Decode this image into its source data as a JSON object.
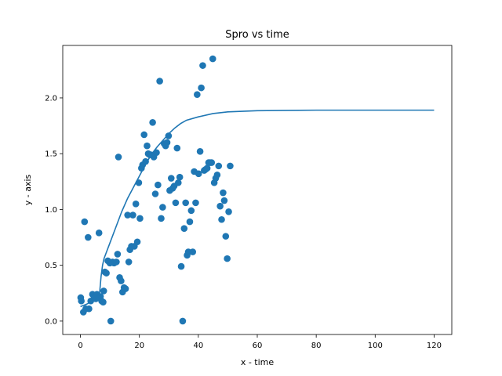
{
  "chart_data": {
    "type": "scatter",
    "title": "Spro vs time",
    "xlabel": "x - time",
    "ylabel": "y - axis",
    "xlim": [
      -6,
      126
    ],
    "ylim": [
      -0.12,
      2.47
    ],
    "xticks": [
      0,
      20,
      40,
      60,
      80,
      100,
      120
    ],
    "yticks": [
      0.0,
      0.5,
      1.0,
      1.5,
      2.0
    ],
    "xtick_labels": [
      "0",
      "20",
      "40",
      "60",
      "80",
      "100",
      "120"
    ],
    "ytick_labels": [
      "0.0",
      "0.5",
      "1.0",
      "1.5",
      "2.0"
    ],
    "grid": false,
    "legend": false,
    "colors": {
      "series": "#1f77b4"
    },
    "series": [
      {
        "kind": "scatter",
        "points": [
          [
            0.1,
            0.21
          ],
          [
            0.3,
            0.18
          ],
          [
            1.0,
            0.08
          ],
          [
            1.4,
            0.89
          ],
          [
            1.8,
            0.11
          ],
          [
            2.6,
            0.75
          ],
          [
            2.9,
            0.11
          ],
          [
            3.5,
            0.18
          ],
          [
            4.1,
            0.24
          ],
          [
            4.6,
            0.22
          ],
          [
            5.2,
            0.2
          ],
          [
            5.6,
            0.24
          ],
          [
            6.3,
            0.79
          ],
          [
            6.8,
            0.22
          ],
          [
            7.2,
            0.18
          ],
          [
            7.7,
            0.17
          ],
          [
            7.9,
            0.27
          ],
          [
            8.3,
            0.44
          ],
          [
            8.8,
            0.43
          ],
          [
            9.3,
            0.54
          ],
          [
            10.0,
            0.52
          ],
          [
            10.3,
            0.0
          ],
          [
            10.9,
            0.53
          ],
          [
            11.4,
            0.52
          ],
          [
            12.2,
            0.53
          ],
          [
            12.6,
            0.6
          ],
          [
            12.9,
            1.47
          ],
          [
            13.3,
            0.39
          ],
          [
            13.8,
            0.36
          ],
          [
            14.3,
            0.26
          ],
          [
            14.8,
            0.3
          ],
          [
            15.3,
            0.29
          ],
          [
            16.0,
            0.95
          ],
          [
            16.4,
            0.53
          ],
          [
            16.8,
            0.64
          ],
          [
            17.3,
            0.67
          ],
          [
            17.8,
            0.95
          ],
          [
            18.3,
            0.67
          ],
          [
            18.8,
            1.05
          ],
          [
            19.3,
            0.71
          ],
          [
            19.8,
            1.24
          ],
          [
            20.2,
            0.92
          ],
          [
            20.7,
            1.37
          ],
          [
            21.1,
            1.4
          ],
          [
            21.6,
            1.67
          ],
          [
            22.1,
            1.43
          ],
          [
            22.6,
            1.57
          ],
          [
            23.0,
            1.5
          ],
          [
            23.5,
            1.49
          ],
          [
            24.0,
            1.49
          ],
          [
            24.5,
            1.78
          ],
          [
            24.9,
            1.47
          ],
          [
            25.4,
            1.14
          ],
          [
            25.8,
            1.51
          ],
          [
            26.3,
            1.22
          ],
          [
            26.9,
            2.15
          ],
          [
            27.4,
            0.92
          ],
          [
            27.9,
            1.02
          ],
          [
            28.4,
            1.59
          ],
          [
            28.9,
            1.57
          ],
          [
            29.4,
            1.6
          ],
          [
            29.9,
            1.66
          ],
          [
            30.3,
            1.17
          ],
          [
            30.8,
            1.28
          ],
          [
            31.3,
            1.19
          ],
          [
            31.8,
            1.21
          ],
          [
            32.3,
            1.06
          ],
          [
            32.8,
            1.55
          ],
          [
            33.2,
            1.24
          ],
          [
            33.7,
            1.29
          ],
          [
            34.2,
            0.49
          ],
          [
            34.7,
            0.0
          ],
          [
            35.2,
            0.83
          ],
          [
            35.7,
            1.06
          ],
          [
            36.2,
            0.59
          ],
          [
            36.6,
            0.62
          ],
          [
            37.1,
            0.89
          ],
          [
            37.6,
            0.99
          ],
          [
            38.1,
            0.62
          ],
          [
            38.6,
            1.34
          ],
          [
            39.1,
            1.06
          ],
          [
            39.6,
            2.03
          ],
          [
            40.1,
            1.32
          ],
          [
            40.6,
            1.52
          ],
          [
            41.0,
            2.09
          ],
          [
            41.5,
            2.29
          ],
          [
            42.0,
            1.35
          ],
          [
            42.5,
            1.36
          ],
          [
            43.0,
            1.37
          ],
          [
            43.5,
            1.42
          ],
          [
            44.0,
            1.42
          ],
          [
            44.5,
            1.42
          ],
          [
            44.9,
            2.35
          ],
          [
            45.4,
            1.24
          ],
          [
            45.9,
            1.28
          ],
          [
            46.4,
            1.31
          ],
          [
            46.9,
            1.39
          ],
          [
            47.4,
            1.03
          ],
          [
            47.9,
            0.91
          ],
          [
            48.4,
            1.15
          ],
          [
            48.8,
            1.08
          ],
          [
            49.3,
            0.76
          ],
          [
            49.8,
            0.56
          ],
          [
            50.3,
            0.98
          ],
          [
            50.8,
            1.39
          ]
        ]
      },
      {
        "kind": "line",
        "points": [
          [
            0,
            0.13
          ],
          [
            2,
            0.15
          ],
          [
            4,
            0.18
          ],
          [
            6,
            0.22
          ],
          [
            6.5,
            0.25
          ],
          [
            7,
            0.4
          ],
          [
            7.5,
            0.5
          ],
          [
            8,
            0.56
          ],
          [
            9,
            0.63
          ],
          [
            10,
            0.7
          ],
          [
            12,
            0.84
          ],
          [
            14,
            0.98
          ],
          [
            16,
            1.1
          ],
          [
            18,
            1.2
          ],
          [
            20,
            1.3
          ],
          [
            22,
            1.4
          ],
          [
            24,
            1.49
          ],
          [
            26,
            1.56
          ],
          [
            28,
            1.62
          ],
          [
            30,
            1.68
          ],
          [
            32,
            1.73
          ],
          [
            34,
            1.77
          ],
          [
            36,
            1.8
          ],
          [
            40,
            1.83
          ],
          [
            45,
            1.86
          ],
          [
            50,
            1.875
          ],
          [
            60,
            1.885
          ],
          [
            70,
            1.888
          ],
          [
            80,
            1.89
          ],
          [
            90,
            1.89
          ],
          [
            100,
            1.89
          ],
          [
            110,
            1.89
          ],
          [
            120,
            1.89
          ]
        ]
      }
    ]
  }
}
